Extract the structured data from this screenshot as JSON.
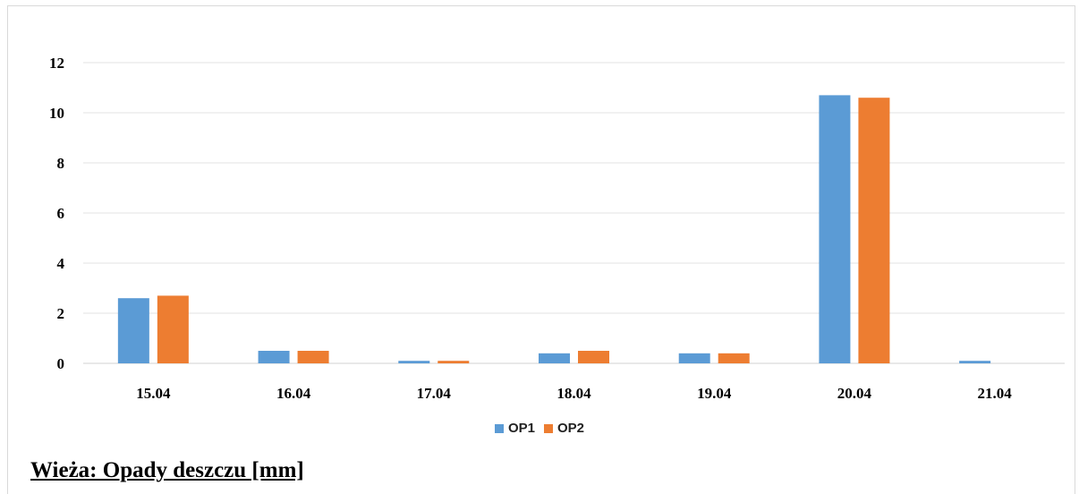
{
  "chart_data": {
    "type": "bar",
    "categories": [
      "15.04",
      "16.04",
      "17.04",
      "18.04",
      "19.04",
      "20.04",
      "21.04"
    ],
    "series": [
      {
        "name": "OP1",
        "color": "#5b9bd5",
        "values": [
          2.6,
          0.5,
          0.1,
          0.4,
          0.4,
          10.7,
          0.1
        ]
      },
      {
        "name": "OP2",
        "color": "#ed7d31",
        "values": [
          2.7,
          0.5,
          0.1,
          0.5,
          0.4,
          10.6,
          0.0
        ]
      }
    ],
    "yticks": [
      "0",
      "2",
      "4",
      "6",
      "8",
      "10",
      "12"
    ],
    "ylim": [
      0,
      12
    ],
    "grid": true,
    "legend_position": "bottom"
  },
  "caption": "Wieża:  Opady deszczu [mm]"
}
